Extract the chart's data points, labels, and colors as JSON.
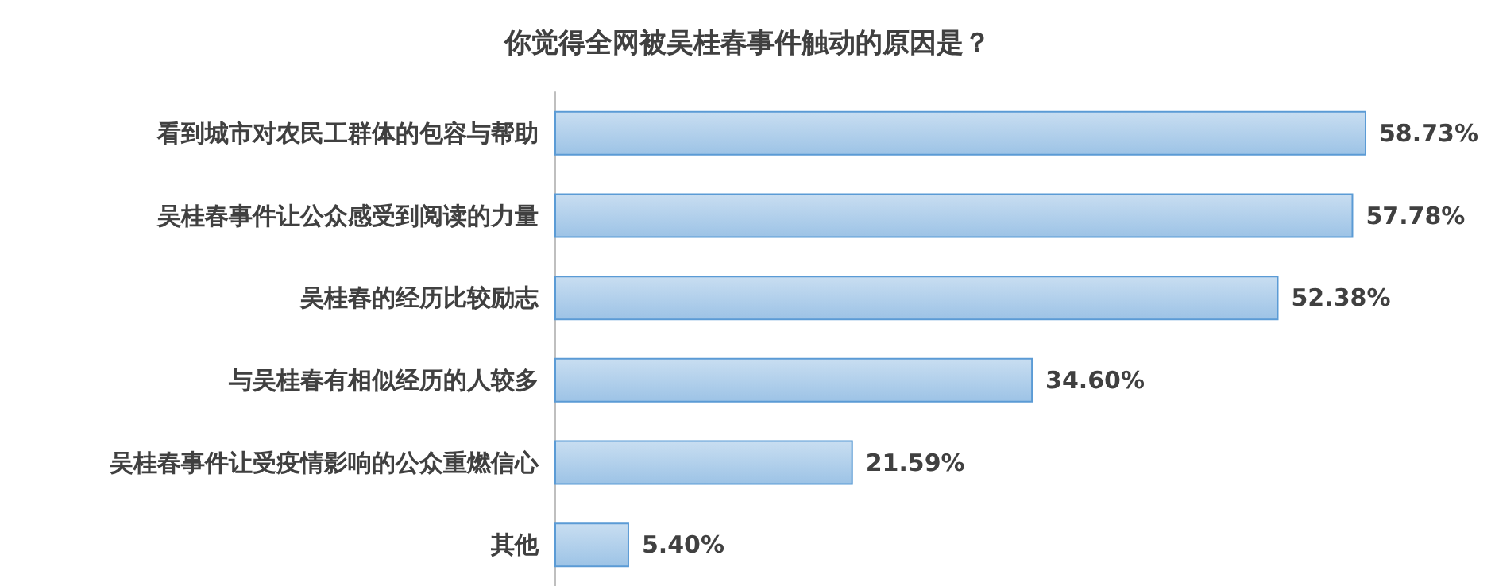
{
  "chart_data": {
    "type": "bar",
    "orientation": "horizontal",
    "title": "你觉得全网被吴桂春事件触动的原因是？",
    "categories": [
      "看到城市对农民工群体的包容与帮助",
      "吴桂春事件让公众感受到阅读的力量",
      "吴桂春的经历比较励志",
      "与吴桂春有相似经历的人较多",
      "吴桂春事件让受疫情影响的公众重燃信心",
      "其他"
    ],
    "values": [
      58.73,
      57.78,
      52.38,
      34.6,
      21.59,
      5.4
    ],
    "value_labels": [
      "58.73%",
      "57.78%",
      "52.38%",
      "34.60%",
      "21.59%",
      "5.40%"
    ],
    "color": "#5b9bd5"
  }
}
